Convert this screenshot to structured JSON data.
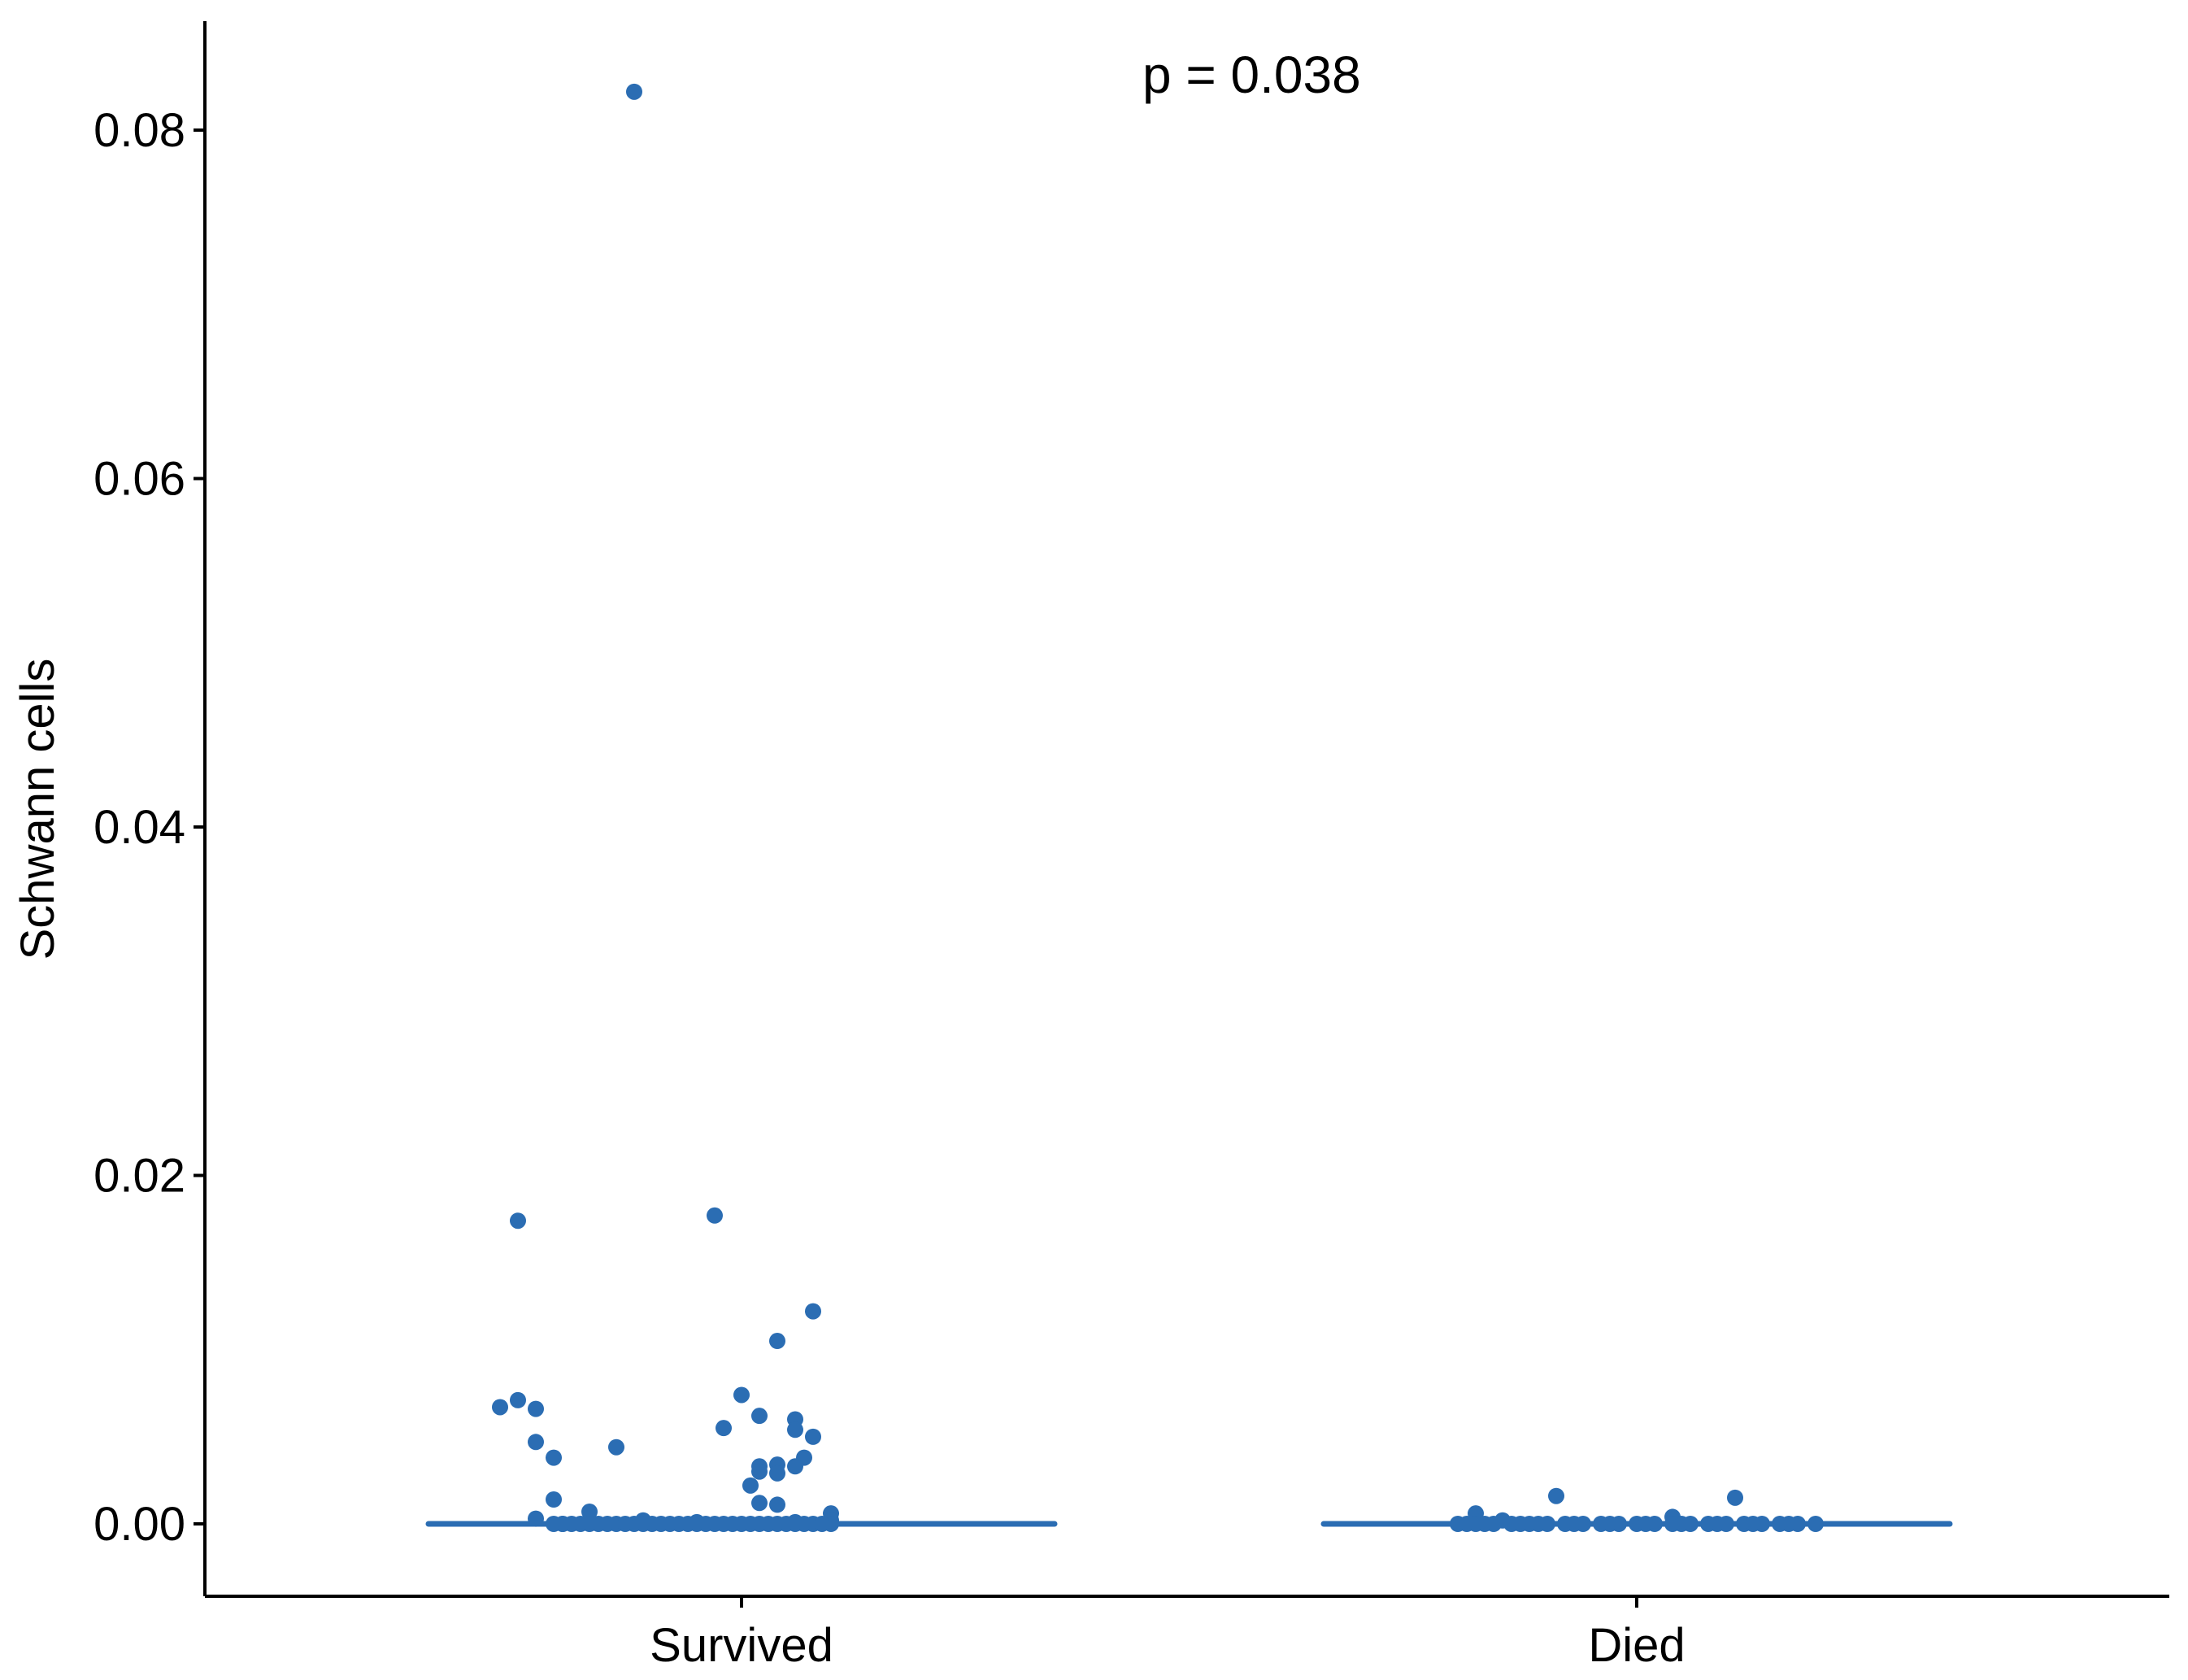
{
  "chart_data": {
    "type": "scatter",
    "ylabel": "Schwann cells",
    "xlabel": "",
    "categories": [
      "Survived",
      "Died"
    ],
    "ylim": [
      -0.004,
      0.086
    ],
    "yticks": [
      0.0,
      0.02,
      0.04,
      0.06,
      0.08
    ],
    "ytick_labels": [
      "0.00",
      "0.02",
      "0.04",
      "0.06",
      "0.08"
    ],
    "annotation": "p = 0.038",
    "color": "#2b6db3",
    "median_lines": [
      {
        "category": "Survived",
        "value": 0.0
      },
      {
        "category": "Died",
        "value": 0.0
      }
    ],
    "series": [
      {
        "category": "Survived",
        "points": [
          [
            -0.12,
            0.0822
          ],
          [
            -0.25,
            0.0174
          ],
          [
            -0.03,
            0.0177
          ],
          [
            0.08,
            0.0122
          ],
          [
            0.04,
            0.0105
          ],
          [
            -0.27,
            0.0067
          ],
          [
            -0.25,
            0.0071
          ],
          [
            -0.23,
            0.0066
          ],
          [
            0.0,
            0.0074
          ],
          [
            0.02,
            0.0062
          ],
          [
            -0.02,
            0.0055
          ],
          [
            0.06,
            0.006
          ],
          [
            0.06,
            0.0054
          ],
          [
            0.08,
            0.005
          ],
          [
            -0.23,
            0.0047
          ],
          [
            -0.14,
            0.0044
          ],
          [
            -0.21,
            0.0038
          ],
          [
            0.07,
            0.0038
          ],
          [
            0.06,
            0.0033
          ],
          [
            0.04,
            0.0034
          ],
          [
            0.02,
            0.0033
          ],
          [
            0.02,
            0.003
          ],
          [
            0.04,
            0.0029
          ],
          [
            0.01,
            0.0022
          ],
          [
            -0.21,
            0.0014
          ],
          [
            0.02,
            0.0012
          ],
          [
            0.04,
            0.0011
          ],
          [
            -0.17,
            0.0007
          ],
          [
            0.1,
            0.0006
          ],
          [
            -0.23,
            0.0003
          ],
          [
            -0.11,
            0.0002
          ],
          [
            -0.05,
            0.0001
          ],
          [
            0.06,
            0.0001
          ],
          [
            0.1,
            0.0002
          ],
          [
            -0.2,
            0.0
          ],
          [
            -0.18,
            0.0
          ],
          [
            -0.16,
            0.0
          ],
          [
            -0.14,
            0.0
          ],
          [
            -0.12,
            0.0
          ],
          [
            -0.1,
            0.0
          ],
          [
            -0.08,
            0.0
          ],
          [
            -0.06,
            0.0
          ],
          [
            -0.04,
            0.0
          ],
          [
            -0.02,
            0.0
          ],
          [
            0.0,
            0.0
          ],
          [
            0.02,
            0.0
          ],
          [
            0.04,
            0.0
          ],
          [
            0.06,
            0.0
          ],
          [
            0.08,
            0.0
          ],
          [
            0.1,
            0.0
          ],
          [
            -0.2,
            0.0
          ],
          [
            -0.21,
            0.0
          ],
          [
            -0.19,
            0.0
          ],
          [
            -0.17,
            0.0
          ],
          [
            -0.15,
            0.0
          ],
          [
            -0.13,
            0.0
          ],
          [
            -0.11,
            0.0
          ],
          [
            -0.09,
            0.0
          ],
          [
            -0.07,
            0.0
          ],
          [
            -0.05,
            0.0
          ],
          [
            -0.03,
            0.0
          ],
          [
            -0.01,
            0.0
          ],
          [
            0.01,
            0.0
          ],
          [
            0.03,
            0.0
          ],
          [
            0.05,
            0.0
          ],
          [
            0.07,
            0.0
          ],
          [
            0.09,
            0.0
          ]
        ]
      },
      {
        "category": "Died",
        "points": [
          [
            -0.09,
            0.0016
          ],
          [
            0.11,
            0.0015
          ],
          [
            -0.18,
            0.0006
          ],
          [
            0.04,
            0.0004
          ],
          [
            -0.15,
            0.0002
          ],
          [
            -0.2,
            0.0
          ],
          [
            -0.18,
            0.0
          ],
          [
            -0.16,
            0.0
          ],
          [
            -0.14,
            0.0
          ],
          [
            -0.12,
            0.0
          ],
          [
            -0.1,
            0.0
          ],
          [
            -0.08,
            0.0
          ],
          [
            -0.06,
            0.0
          ],
          [
            -0.04,
            0.0
          ],
          [
            -0.02,
            0.0
          ],
          [
            0.0,
            0.0
          ],
          [
            0.02,
            0.0
          ],
          [
            0.04,
            0.0
          ],
          [
            0.06,
            0.0
          ],
          [
            0.08,
            0.0
          ],
          [
            0.1,
            0.0
          ],
          [
            0.12,
            0.0
          ],
          [
            0.14,
            0.0
          ],
          [
            0.16,
            0.0
          ],
          [
            0.18,
            0.0
          ],
          [
            0.2,
            0.0
          ],
          [
            -0.19,
            0.0
          ],
          [
            -0.17,
            0.0
          ],
          [
            -0.13,
            0.0
          ],
          [
            -0.11,
            0.0
          ],
          [
            -0.07,
            0.0
          ],
          [
            -0.03,
            0.0
          ],
          [
            0.01,
            0.0
          ],
          [
            0.05,
            0.0
          ],
          [
            0.09,
            0.0
          ],
          [
            0.13,
            0.0
          ],
          [
            0.17,
            0.0
          ]
        ]
      }
    ]
  }
}
